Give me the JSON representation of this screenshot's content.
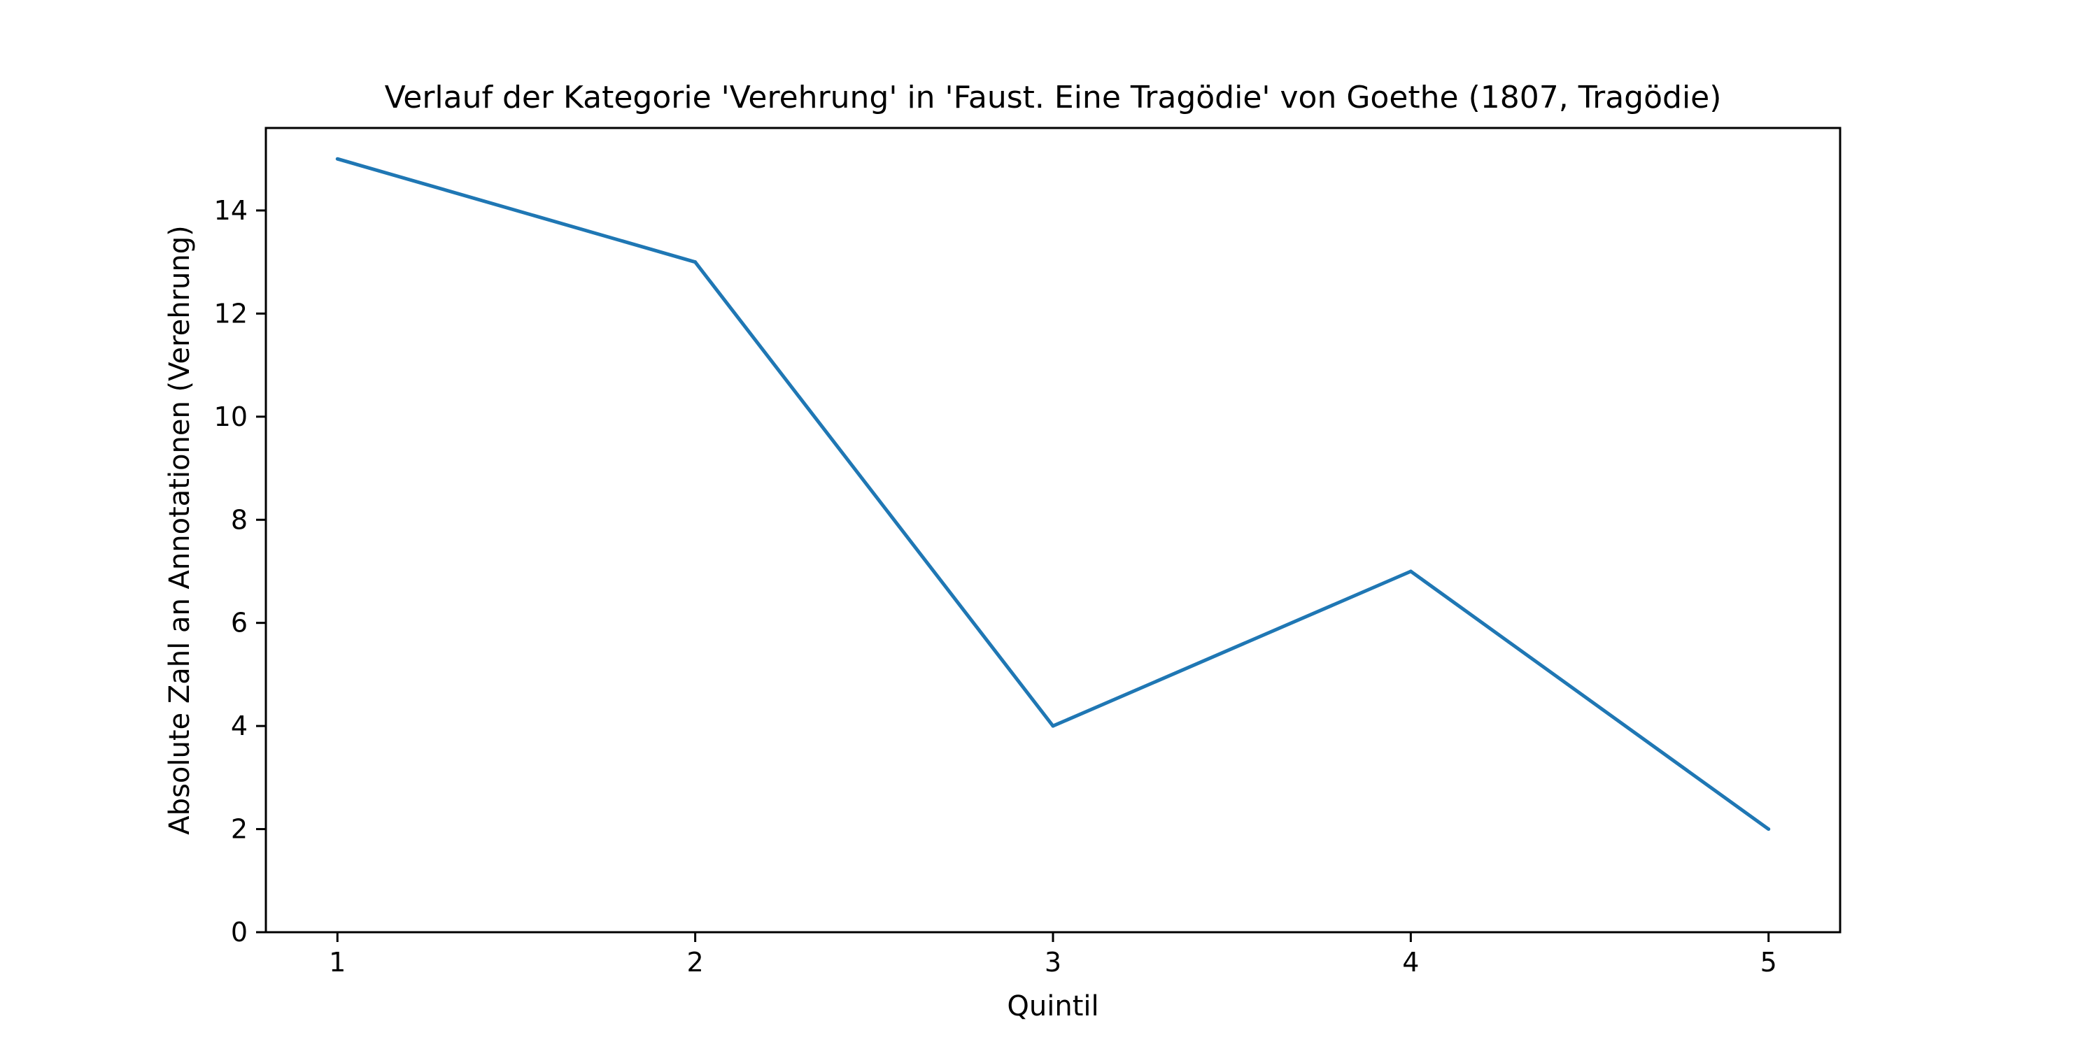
{
  "chart_data": {
    "type": "line",
    "title": "Verlauf der Kategorie 'Verehrung' in 'Faust. Eine Tragödie' von Goethe (1807, Tragödie)",
    "xlabel": "Quintil",
    "ylabel": "Absolute Zahl an Annotationen (Verehrung)",
    "x": [
      1,
      2,
      3,
      4,
      5
    ],
    "series": [
      {
        "values": [
          15,
          13,
          4,
          7,
          2
        ],
        "color": "#1f77b4"
      }
    ],
    "xlim": [
      0.8,
      5.2
    ],
    "ylim": [
      0,
      15.6
    ],
    "xticks": [
      1,
      2,
      3,
      4,
      5
    ],
    "yticks": [
      0,
      2,
      4,
      6,
      8,
      10,
      12,
      14
    ],
    "grid": false,
    "legend": "none"
  }
}
